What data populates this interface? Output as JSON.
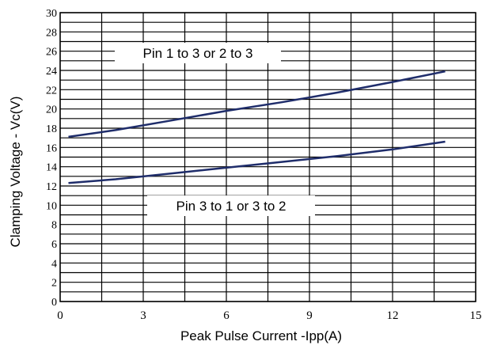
{
  "chart_data": {
    "type": "line",
    "title": "",
    "xlabel": "Peak Pulse Current    -Ipp(A)",
    "ylabel": "Clamping Voltage - Vc(V)",
    "xlim": [
      0,
      15
    ],
    "ylim": [
      0,
      30
    ],
    "grid": true,
    "x_tick_labels": [
      "0",
      "3",
      "6",
      "9",
      "12",
      "15"
    ],
    "y_tick_labels": [
      "0",
      "2",
      "4",
      "6",
      "8",
      "10",
      "12",
      "14",
      "16",
      "18",
      "20",
      "22",
      "24",
      "26",
      "28",
      "30"
    ],
    "annotations": [
      {
        "text": "Pin 1 to 3 or 2 to 3",
        "series": 0
      },
      {
        "text": "Pin 3 to 1 or 3 to 2",
        "series": 1
      }
    ],
    "series": [
      {
        "color": "#1f2d6b",
        "points": [
          [
            0.3,
            17.1
          ],
          [
            2,
            17.8
          ],
          [
            4,
            18.8
          ],
          [
            6,
            19.8
          ],
          [
            8,
            20.7
          ],
          [
            10,
            21.7
          ],
          [
            12,
            22.8
          ],
          [
            13.9,
            23.9
          ]
        ]
      },
      {
        "color": "#1f2d6b",
        "points": [
          [
            0.3,
            12.3
          ],
          [
            2,
            12.7
          ],
          [
            4,
            13.3
          ],
          [
            6,
            13.9
          ],
          [
            8,
            14.5
          ],
          [
            10,
            15.1
          ],
          [
            12,
            15.8
          ],
          [
            13.9,
            16.6
          ]
        ]
      }
    ]
  }
}
